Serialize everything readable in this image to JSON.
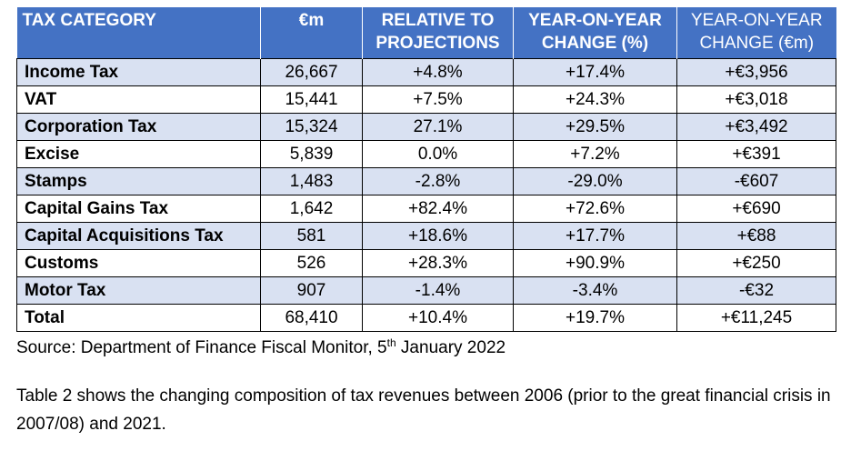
{
  "table": {
    "headers": [
      {
        "line1": "TAX CATEGORY",
        "line2": ""
      },
      {
        "line1": "€m",
        "line2": ""
      },
      {
        "line1": "RELATIVE TO",
        "line2": "PROJECTIONS"
      },
      {
        "line1": "YEAR-ON-YEAR",
        "line2": "CHANGE (%)"
      },
      {
        "line1": "YEAR-ON-YEAR",
        "line2": "CHANGE (€m)"
      }
    ],
    "rows": [
      [
        "Income Tax",
        "26,667",
        "+4.8%",
        "+17.4%",
        "+€3,956"
      ],
      [
        "VAT",
        "15,441",
        "+7.5%",
        "+24.3%",
        "+€3,018"
      ],
      [
        "Corporation Tax",
        "15,324",
        "27.1%",
        "+29.5%",
        "+€3,492"
      ],
      [
        "Excise",
        "5,839",
        "0.0%",
        "+7.2%",
        "+€391"
      ],
      [
        "Stamps",
        "1,483",
        "-2.8%",
        "-29.0%",
        "-€607"
      ],
      [
        "Capital Gains Tax",
        "1,642",
        "+82.4%",
        "+72.6%",
        "+€690"
      ],
      [
        "Capital Acquisitions Tax",
        "581",
        "+18.6%",
        "+17.7%",
        "+€88"
      ],
      [
        "Customs",
        "526",
        "+28.3%",
        "+90.9%",
        "+€250"
      ],
      [
        "Motor Tax",
        "907",
        "-1.4%",
        "-3.4%",
        "-€32"
      ],
      [
        "Total",
        "68,410",
        "+10.4%",
        "+19.7%",
        "+€11,245"
      ]
    ]
  },
  "source": {
    "prefix": "Source: Department of Finance Fiscal Monitor, 5",
    "superscript": "th",
    "suffix": " January 2022"
  },
  "paragraph": "Table 2 shows the changing composition of tax revenues between 2006 (prior to the great financial crisis in 2007/08) and 2021.",
  "colors": {
    "header_bg": "#4472c4",
    "header_text": "#ffffff",
    "row_band": "#d9e1f2",
    "row_plain": "#ffffff"
  }
}
